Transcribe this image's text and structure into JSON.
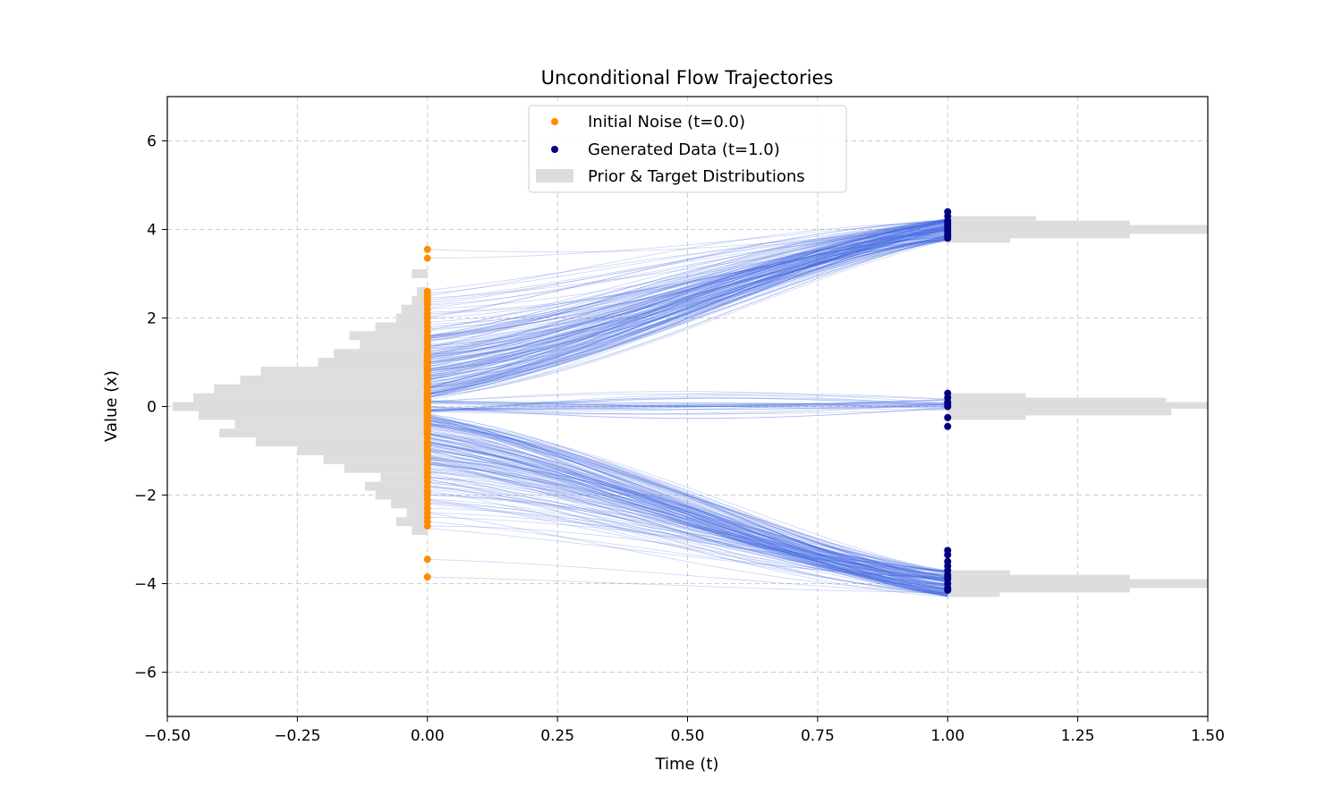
{
  "chart_data": {
    "type": "line",
    "title": "Unconditional Flow Trajectories",
    "xlabel": "Time (t)",
    "ylabel": "Value (x)",
    "xlim": [
      -0.5,
      1.5
    ],
    "ylim": [
      -7,
      7
    ],
    "xticks": [
      -0.5,
      -0.25,
      0.0,
      0.25,
      0.5,
      0.75,
      1.0,
      1.25,
      1.5
    ],
    "xtick_labels": [
      "−0.50",
      "−0.25",
      "0.00",
      "0.25",
      "0.50",
      "0.75",
      "1.00",
      "1.25",
      "1.50"
    ],
    "yticks": [
      -6,
      -4,
      -2,
      0,
      2,
      4,
      6
    ],
    "ytick_labels": [
      "−6",
      "−4",
      "−2",
      "0",
      "2",
      "4",
      "6"
    ],
    "grid": true,
    "legend_position": "top-center",
    "legend": [
      {
        "label": "Initial Noise (t=0.0)",
        "marker": "dot",
        "color": "#ff8c00"
      },
      {
        "label": "Generated Data (t=1.0)",
        "marker": "dot",
        "color": "#000080"
      },
      {
        "label": "Prior & Target Distributions",
        "marker": "patch",
        "color": "#dddddd"
      }
    ],
    "colors": {
      "trajectory": "#4169e1",
      "noise": "#ff8c00",
      "generated": "#000080",
      "histogram": "#dddddd",
      "grid": "#cccccc"
    },
    "series": [
      {
        "name": "Initial Noise (t=0.0)",
        "type": "scatter",
        "t": 0.0,
        "values": [
          3.55,
          3.35,
          2.55,
          2.5,
          2.45,
          2.4,
          2.35,
          2.3,
          2.2,
          2.1,
          2.0,
          1.9,
          1.8,
          1.7,
          1.6,
          1.5,
          1.4,
          1.3,
          1.2,
          1.1,
          1.0,
          0.9,
          0.8,
          0.7,
          0.6,
          0.5,
          0.4,
          0.3,
          0.2,
          0.1,
          0.0,
          -0.1,
          -0.2,
          -0.3,
          -0.4,
          -0.5,
          -0.6,
          -0.7,
          -0.8,
          -0.9,
          -1.0,
          -1.1,
          -1.2,
          -1.3,
          -1.4,
          -1.5,
          -1.6,
          -1.7,
          -1.8,
          -1.9,
          -2.0,
          -2.1,
          -2.2,
          -2.3,
          -2.4,
          -2.5,
          -2.6,
          -2.7,
          -3.45,
          -3.85
        ]
      },
      {
        "name": "Generated Data (t=1.0)",
        "type": "scatter",
        "t": 1.0,
        "values": [
          4.4,
          4.3,
          4.2,
          4.15,
          4.1,
          4.05,
          4.0,
          3.95,
          3.9,
          3.85,
          3.8,
          0.3,
          0.2,
          0.1,
          0.05,
          0.0,
          -0.25,
          -0.45,
          -3.25,
          -3.35,
          -3.5,
          -3.6,
          -3.7,
          -3.8,
          -3.85,
          -3.9,
          -4.0,
          -4.1,
          -4.15
        ]
      }
    ],
    "trajectory_mapping": "samples with x0 > 0.15 flow to the mode at 4; samples with x0 < -0.15 flow to the mode at -4; samples near 0 flow to the mode at 0",
    "trajectory_count": 300,
    "target_modes": [
      -4,
      0,
      4
    ],
    "prior_histogram": {
      "origin_t": 0.0,
      "direction": "left",
      "bins": [
        [
          -2.9,
          -2.7,
          0.03
        ],
        [
          -2.7,
          -2.5,
          0.06
        ],
        [
          -2.5,
          -2.3,
          0.04
        ],
        [
          -2.3,
          -2.1,
          0.07
        ],
        [
          -2.1,
          -1.9,
          0.1
        ],
        [
          -1.9,
          -1.7,
          0.12
        ],
        [
          -1.7,
          -1.5,
          0.09
        ],
        [
          -1.5,
          -1.3,
          0.16
        ],
        [
          -1.3,
          -1.1,
          0.2
        ],
        [
          -1.1,
          -0.9,
          0.25
        ],
        [
          -0.9,
          -0.7,
          0.33
        ],
        [
          -0.7,
          -0.5,
          0.4
        ],
        [
          -0.5,
          -0.3,
          0.37
        ],
        [
          -0.3,
          -0.1,
          0.44
        ],
        [
          -0.1,
          0.1,
          0.49
        ],
        [
          0.1,
          0.3,
          0.45
        ],
        [
          0.3,
          0.5,
          0.41
        ],
        [
          0.5,
          0.7,
          0.36
        ],
        [
          0.7,
          0.9,
          0.32
        ],
        [
          0.9,
          1.1,
          0.21
        ],
        [
          1.1,
          1.3,
          0.18
        ],
        [
          1.3,
          1.5,
          0.13
        ],
        [
          1.5,
          1.7,
          0.15
        ],
        [
          1.7,
          1.9,
          0.1
        ],
        [
          1.9,
          2.1,
          0.06
        ],
        [
          2.1,
          2.3,
          0.05
        ],
        [
          2.3,
          2.5,
          0.03
        ],
        [
          2.5,
          2.7,
          0.02
        ],
        [
          2.9,
          3.1,
          0.03
        ]
      ]
    },
    "target_histogram": {
      "origin_t": 1.0,
      "direction": "right",
      "bins": [
        [
          4.2,
          4.3,
          0.17
        ],
        [
          4.1,
          4.2,
          0.35
        ],
        [
          3.9,
          4.1,
          0.5
        ],
        [
          3.8,
          3.9,
          0.35
        ],
        [
          3.7,
          3.8,
          0.12
        ],
        [
          0.2,
          0.3,
          0.15
        ],
        [
          0.1,
          0.2,
          0.42
        ],
        [
          -0.05,
          0.1,
          0.5
        ],
        [
          -0.2,
          -0.05,
          0.43
        ],
        [
          -0.3,
          -0.2,
          0.15
        ],
        [
          -3.8,
          -3.7,
          0.12
        ],
        [
          -3.9,
          -3.8,
          0.35
        ],
        [
          -4.1,
          -3.9,
          0.5
        ],
        [
          -4.2,
          -4.1,
          0.35
        ],
        [
          -4.3,
          -4.2,
          0.1
        ]
      ]
    }
  }
}
